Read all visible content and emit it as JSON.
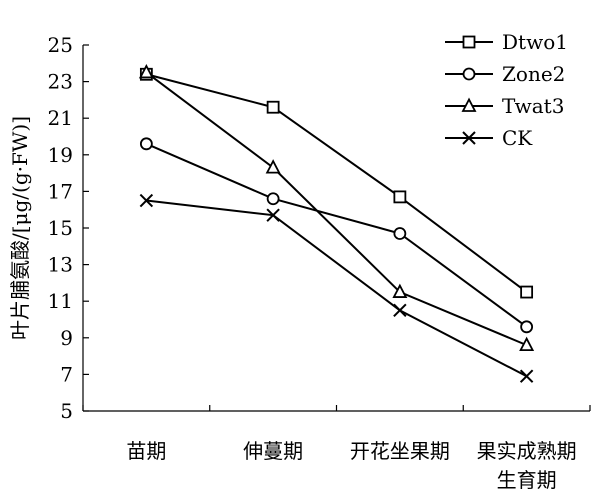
{
  "chart_data": {
    "type": "line",
    "title": "",
    "ylabel": "叶片脯氨酸/[μg/(g·FW)]",
    "xlabel": "",
    "categories": [
      "苗期",
      "伸蔓期",
      "开花坐果期",
      "果实成熟期"
    ],
    "category_label_extra": {
      "3": "生育期"
    },
    "ylim": [
      5,
      25
    ],
    "yticks": [
      5,
      7,
      9,
      11,
      13,
      15,
      17,
      19,
      21,
      23,
      25
    ],
    "grid": false,
    "legend_position": "top-right",
    "series": [
      {
        "name": "Dtwo1",
        "marker": "square",
        "values": [
          23.4,
          21.6,
          16.7,
          11.5
        ]
      },
      {
        "name": "Zone2",
        "marker": "circle",
        "values": [
          19.6,
          16.6,
          14.7,
          9.6
        ]
      },
      {
        "name": "Twat3",
        "marker": "triangle",
        "values": [
          23.5,
          18.3,
          11.5,
          8.6
        ]
      },
      {
        "name": "CK",
        "marker": "x",
        "values": [
          16.5,
          15.7,
          10.5,
          6.9
        ]
      }
    ]
  }
}
